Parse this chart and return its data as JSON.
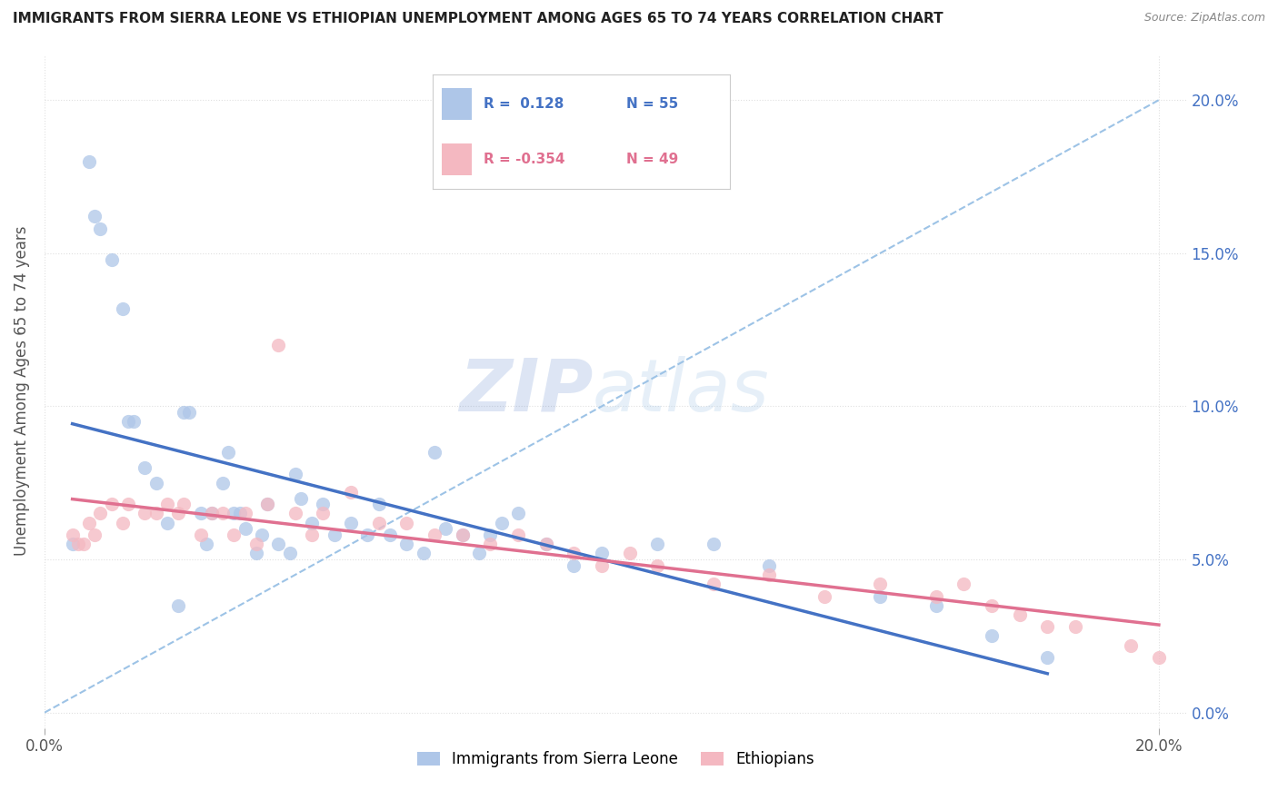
{
  "title": "IMMIGRANTS FROM SIERRA LEONE VS ETHIOPIAN UNEMPLOYMENT AMONG AGES 65 TO 74 YEARS CORRELATION CHART",
  "source": "Source: ZipAtlas.com",
  "ylabel": "Unemployment Among Ages 65 to 74 years",
  "xlim": [
    0.0,
    0.205
  ],
  "ylim": [
    -0.005,
    0.215
  ],
  "yticks": [
    0.0,
    0.05,
    0.1,
    0.15,
    0.2
  ],
  "ytick_labels_right": [
    "0.0%",
    "5.0%",
    "10.0%",
    "15.0%",
    "20.0%"
  ],
  "xtick_labels": [
    "0.0%",
    "20.0%"
  ],
  "xtick_pos": [
    0.0,
    0.2
  ],
  "right_axis_color": "#4472c4",
  "sierra_leone_color": "#aec6e8",
  "ethiopian_color": "#f4b8c1",
  "sierra_leone_line_color": "#4472c4",
  "ethiopian_line_color": "#e07090",
  "diagonal_line_color": "#9dc3e6",
  "diagonal_line_style": "--",
  "watermark_zip": "ZIP",
  "watermark_atlas": "atlas",
  "sl_scatter_x": [
    0.005,
    0.008,
    0.009,
    0.01,
    0.012,
    0.014,
    0.015,
    0.016,
    0.018,
    0.02,
    0.022,
    0.024,
    0.025,
    0.026,
    0.028,
    0.029,
    0.03,
    0.032,
    0.033,
    0.034,
    0.035,
    0.036,
    0.038,
    0.039,
    0.04,
    0.042,
    0.044,
    0.045,
    0.046,
    0.048,
    0.05,
    0.052,
    0.055,
    0.058,
    0.06,
    0.062,
    0.065,
    0.068,
    0.07,
    0.072,
    0.075,
    0.078,
    0.08,
    0.082,
    0.085,
    0.09,
    0.095,
    0.1,
    0.11,
    0.12,
    0.13,
    0.15,
    0.16,
    0.17,
    0.18
  ],
  "sl_scatter_y": [
    0.055,
    0.18,
    0.162,
    0.158,
    0.148,
    0.132,
    0.095,
    0.095,
    0.08,
    0.075,
    0.062,
    0.035,
    0.098,
    0.098,
    0.065,
    0.055,
    0.065,
    0.075,
    0.085,
    0.065,
    0.065,
    0.06,
    0.052,
    0.058,
    0.068,
    0.055,
    0.052,
    0.078,
    0.07,
    0.062,
    0.068,
    0.058,
    0.062,
    0.058,
    0.068,
    0.058,
    0.055,
    0.052,
    0.085,
    0.06,
    0.058,
    0.052,
    0.058,
    0.062,
    0.065,
    0.055,
    0.048,
    0.052,
    0.055,
    0.055,
    0.048,
    0.038,
    0.035,
    0.025,
    0.018
  ],
  "eth_scatter_x": [
    0.005,
    0.006,
    0.007,
    0.008,
    0.009,
    0.01,
    0.012,
    0.014,
    0.015,
    0.018,
    0.02,
    0.022,
    0.024,
    0.025,
    0.028,
    0.03,
    0.032,
    0.034,
    0.036,
    0.038,
    0.04,
    0.042,
    0.045,
    0.048,
    0.05,
    0.055,
    0.06,
    0.065,
    0.07,
    0.075,
    0.08,
    0.085,
    0.09,
    0.095,
    0.1,
    0.105,
    0.11,
    0.12,
    0.13,
    0.14,
    0.15,
    0.16,
    0.165,
    0.17,
    0.175,
    0.18,
    0.185,
    0.195,
    0.2
  ],
  "eth_scatter_y": [
    0.058,
    0.055,
    0.055,
    0.062,
    0.058,
    0.065,
    0.068,
    0.062,
    0.068,
    0.065,
    0.065,
    0.068,
    0.065,
    0.068,
    0.058,
    0.065,
    0.065,
    0.058,
    0.065,
    0.055,
    0.068,
    0.12,
    0.065,
    0.058,
    0.065,
    0.072,
    0.062,
    0.062,
    0.058,
    0.058,
    0.055,
    0.058,
    0.055,
    0.052,
    0.048,
    0.052,
    0.048,
    0.042,
    0.045,
    0.038,
    0.042,
    0.038,
    0.042,
    0.035,
    0.032,
    0.028,
    0.028,
    0.022,
    0.018
  ]
}
